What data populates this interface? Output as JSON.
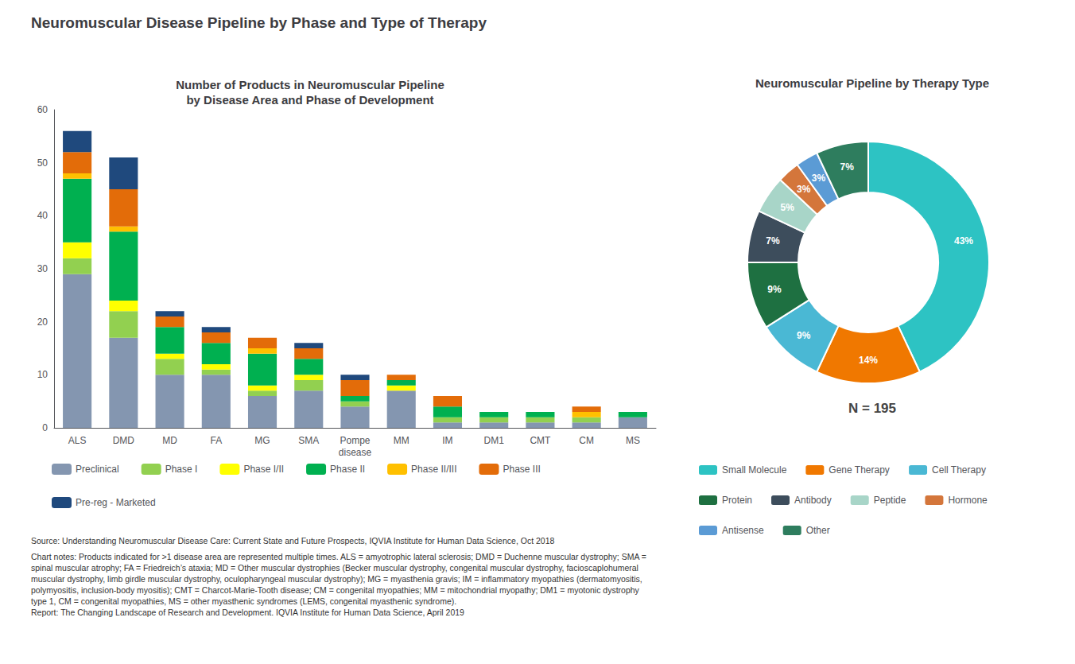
{
  "title": "Neuromuscular Disease Pipeline by Phase and Type of Therapy",
  "annotations": [
    "Source: Understanding Neuromuscular Disease Care: Current State and Future Prospects, IQVIA Institute for Human Data Science, Oct 2018",
    "Chart notes: Products indicated for >1 disease area are represented multiple times. ALS = amyotrophic lateral sclerosis; DMD = Duchenne muscular dystrophy; SMA =\nspinal muscular atrophy; FA = Friedreich’s ataxia; MD = Other muscular dystrophies (Becker muscular dystrophy, congenital muscular dystrophy, facioscaplohumeral\nmuscular dystrophy, limb girdle muscular dystrophy, oculopharyngeal muscular dystrophy); MG = myasthenia gravis; IM = inflammatory myopathies (dermatomyositis,\npolymyositis, inclusion-body myositis); CMT = Charcot-Marie-Tooth disease; CM = congenital myopathies; MM = mitochondrial myopathy; DM1 = myotonic dystrophy\ntype 1, CM = congenital myopathies, MS = other myasthenic syndromes (LEMS, congenital myasthenic syndrome).\nReport: The Changing Landscape of Research and Development. IQVIA Institute for Human Data Science, April 2019"
  ],
  "chart_data": [
    {
      "type": "bar",
      "title": "Number of Products in Neuromuscular Pipeline\nby Disease Area and Phase of Development",
      "categories": [
        "ALS",
        "DMD",
        "MD",
        "FA",
        "MG",
        "SMA",
        "Pompe\ndisease",
        "MM",
        "IM",
        "DM1",
        "CMT",
        "CM",
        "MS"
      ],
      "series": [
        {
          "name": "Preclinical",
          "color": "#8496b0",
          "values": [
            29,
            17,
            10,
            10,
            6,
            7,
            4,
            7,
            1,
            1,
            1,
            1,
            2
          ]
        },
        {
          "name": "Phase I",
          "color": "#92d050",
          "values": [
            3,
            5,
            3,
            1,
            1,
            2,
            1,
            0,
            1,
            1,
            1,
            1,
            0
          ]
        },
        {
          "name": "Phase I/II",
          "color": "#ffff00",
          "values": [
            3,
            2,
            1,
            1,
            1,
            1,
            0,
            1,
            0,
            0,
            0,
            0,
            0
          ]
        },
        {
          "name": "Phase II",
          "color": "#00b050",
          "values": [
            12,
            13,
            5,
            4,
            6,
            3,
            1,
            1,
            2,
            1,
            1,
            0,
            1
          ]
        },
        {
          "name": "Phase II/III",
          "color": "#ffc000",
          "values": [
            1,
            1,
            0,
            0,
            1,
            0,
            0,
            0,
            0,
            0,
            0,
            1,
            0
          ]
        },
        {
          "name": "Phase III",
          "color": "#e36c09",
          "values": [
            4,
            7,
            2,
            2,
            2,
            2,
            3,
            1,
            2,
            0,
            0,
            1,
            0
          ]
        },
        {
          "name": "Pre-reg - Marketed",
          "color": "#1f497d",
          "values": [
            4,
            6,
            1,
            1,
            0,
            1,
            1,
            0,
            0,
            0,
            0,
            0,
            0
          ]
        }
      ],
      "stacked": true,
      "ylim": [
        0,
        60
      ],
      "yticks": [
        0,
        10,
        20,
        30,
        40,
        50,
        60
      ],
      "grid": false,
      "legend": "bottom"
    },
    {
      "type": "pie",
      "title": "Neuromuscular Pipeline by Therapy Type",
      "categories": [
        "Small Molecule",
        "Gene Therapy",
        "Cell Therapy",
        "Protein",
        "Antibody",
        "Peptide",
        "Hormone",
        "Antisense",
        "Other"
      ],
      "values": [
        43,
        14,
        9,
        9,
        7,
        5,
        3,
        3,
        7
      ],
      "value_labels": [
        "43%",
        "14%",
        "9%",
        "9%",
        "7%",
        "5%",
        "3%",
        "3%",
        "7%"
      ],
      "colors": [
        "#2dc3c3",
        "#f07800",
        "#4ab8d4",
        "#1e7041",
        "#3d4d5c",
        "#a8d5c8",
        "#d4763b",
        "#5b9bd5",
        "#2e7d5e"
      ],
      "data_labels": true,
      "annotations": [
        "N = 195"
      ],
      "legend": "bottom"
    }
  ]
}
